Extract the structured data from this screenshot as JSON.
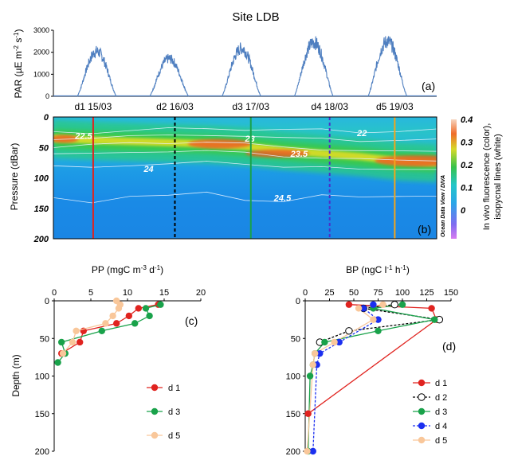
{
  "chart_data": [
    {
      "panel": "(a)",
      "type": "area",
      "title": "Site LDB",
      "ylabel": "PAR  (µE m⁻² s⁻¹)",
      "ylabel_parts": {
        "main": "PAR  (µE m",
        "sup1": "-2",
        "mid": " s",
        "sup2": "-1",
        "end": ")"
      },
      "yticks": [
        "0",
        "1000",
        "2000",
        "3000"
      ],
      "ylim": [
        0,
        3000
      ],
      "xlim": [
        14.9,
        20.2
      ],
      "series": [
        {
          "day_center": 15.5,
          "peak": 2200
        },
        {
          "day_center": 16.5,
          "peak": 1850
        },
        {
          "day_center": 17.5,
          "peak": 2350
        },
        {
          "day_center": 18.5,
          "peak": 2650
        },
        {
          "day_center": 19.52,
          "peak": 2700
        }
      ],
      "label": "(a)"
    },
    {
      "panel": "(b)",
      "type": "heatmap",
      "ylabel": "Pressure (dBar)",
      "yticks": [
        "0",
        "50",
        "100",
        "150",
        "200"
      ],
      "ylim": [
        200,
        0
      ],
      "xlim": [
        14.9,
        20.2
      ],
      "colorbar": {
        "label_line1": "In vivo fluorescence (color),",
        "label_line2": "isopycnal lines (white)",
        "ticks": [
          "0.4",
          "0.3",
          "0.2",
          "0.1",
          "0"
        ],
        "range": [
          0,
          0.4
        ]
      },
      "day_markers": [
        {
          "label": "d1 15/03",
          "x": 15.45,
          "color": "#e0231f",
          "style": "solid"
        },
        {
          "label": "d2 16/03",
          "x": 16.58,
          "color": "#000000",
          "style": "dashed"
        },
        {
          "label": "d3 17/03",
          "x": 17.63,
          "color": "#19a24a",
          "style": "solid"
        },
        {
          "label": "d4 18/03",
          "x": 18.72,
          "color": "#4b2fc9",
          "style": "dashed"
        },
        {
          "label": "d5 19/03",
          "x": 19.62,
          "color": "#f2a51c",
          "style": "solid"
        }
      ],
      "isopycnals": [
        {
          "label": "22",
          "depths": [
            24,
            25,
            23,
            20,
            18,
            20,
            22,
            21,
            24,
            23,
            22
          ]
        },
        {
          "label": "22.5",
          "depths": [
            35,
            34,
            33,
            30,
            28,
            32,
            36,
            34,
            38,
            40,
            38
          ]
        },
        {
          "label": "23",
          "depths": [
            48,
            46,
            44,
            42,
            40,
            45,
            50,
            52,
            55,
            58,
            56
          ]
        },
        {
          "label": "23.5",
          "depths": [
            60,
            62,
            58,
            55,
            56,
            60,
            64,
            66,
            70,
            72,
            70
          ]
        },
        {
          "label": "24",
          "depths": [
            82,
            84,
            78,
            76,
            75,
            78,
            80,
            82,
            88,
            85,
            84
          ]
        },
        {
          "label": "24.5",
          "depths": [
            135,
            140,
            128,
            130,
            125,
            135,
            138,
            130,
            132,
            128,
            130
          ]
        }
      ],
      "chl_max_depth": [
        35,
        38,
        40,
        42,
        44,
        48,
        55,
        60,
        65,
        72,
        75
      ],
      "watermark": "Ocean Data View / DIVA",
      "label": "(b)"
    },
    {
      "panel": "(c)",
      "type": "line",
      "title": "PP",
      "title_parts": {
        "main": "PP  (mgC m",
        "sup1": "-3",
        "mid": " d",
        "sup2": "-1",
        "end": ")"
      },
      "ylabel": "Depth (m)",
      "xticks": [
        "0",
        "5",
        "10",
        "15",
        "20"
      ],
      "xlim": [
        0,
        20
      ],
      "yticks": [
        "0",
        "50",
        "100",
        "150",
        "200"
      ],
      "ylim": [
        200,
        0
      ],
      "series": [
        {
          "name": "d 1",
          "color": "#e0231f",
          "depth": [
            5,
            10,
            20,
            30,
            40,
            55,
            70
          ],
          "value": [
            14.2,
            11.5,
            10.2,
            8.5,
            4.0,
            3.5,
            1.0
          ]
        },
        {
          "name": "d 3",
          "color": "#19a24a",
          "depth": [
            5,
            10,
            20,
            30,
            40,
            55,
            70,
            82
          ],
          "value": [
            14.5,
            12.5,
            13.0,
            11.0,
            6.5,
            1.0,
            1.5,
            0.5
          ]
        },
        {
          "name": "d 5",
          "color": "#f9c79a",
          "depth": [
            0,
            5,
            10,
            20,
            30,
            40,
            55,
            70
          ],
          "value": [
            8.5,
            9.0,
            8.8,
            8.0,
            7.0,
            3.0,
            2.5,
            1.2
          ]
        }
      ],
      "label": "(c)"
    },
    {
      "panel": "(d)",
      "type": "line",
      "title": "BP",
      "title_parts": {
        "main": "BP  (ngC l",
        "sup1": "-1",
        "mid": " h",
        "sup2": "-1",
        "end": ")"
      },
      "xticks": [
        "0",
        "25",
        "50",
        "75",
        "100",
        "125",
        "150"
      ],
      "xlim": [
        0,
        150
      ],
      "yticks": [
        "0",
        "50",
        "100",
        "150",
        "200"
      ],
      "ylim": [
        200,
        0
      ],
      "series": [
        {
          "name": "d 1",
          "color": "#e0231f",
          "marker": "filled",
          "dash": false,
          "depth": [
            5,
            10,
            25,
            150
          ],
          "value": [
            45,
            130,
            135,
            3
          ]
        },
        {
          "name": "d 2",
          "color": "#000000",
          "marker": "open",
          "dash": true,
          "depth": [
            5,
            10,
            25,
            40,
            55
          ],
          "value": [
            92,
            60,
            138,
            45,
            15
          ]
        },
        {
          "name": "d 3",
          "color": "#19a24a",
          "marker": "filled",
          "dash": false,
          "depth": [
            5,
            10,
            25,
            40,
            55,
            70,
            85,
            100,
            200
          ],
          "value": [
            100,
            70,
            133,
            75,
            20,
            10,
            8,
            5,
            3
          ]
        },
        {
          "name": "d 4",
          "color": "#1b2ff0",
          "marker": "filled",
          "dash": true,
          "depth": [
            5,
            10,
            25,
            55,
            70,
            85,
            200
          ],
          "value": [
            70,
            60,
            75,
            35,
            15,
            12,
            8
          ]
        },
        {
          "name": "d 5",
          "color": "#f9c79a",
          "marker": "filled",
          "dash": false,
          "depth": [
            5,
            10,
            25,
            55,
            70,
            85,
            200
          ],
          "value": [
            80,
            55,
            70,
            30,
            10,
            8,
            2
          ]
        }
      ],
      "label": "(d)"
    }
  ]
}
